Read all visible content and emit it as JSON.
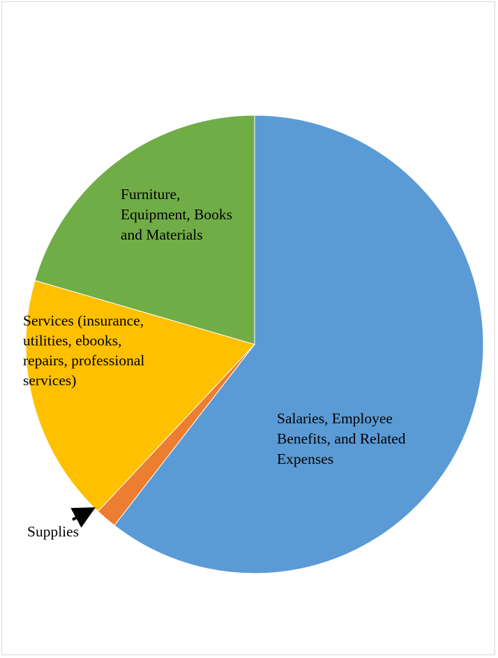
{
  "chart_data": {
    "type": "pie",
    "title": "",
    "categories": [
      "Salaries, Employee Benefits, and Related Expenses",
      "Supplies",
      "Services (insurance, utilities, ebooks, repairs, professional services)",
      "Furniture, Equipment, Books and Materials"
    ],
    "values": [
      60.5,
      1.5,
      17.5,
      20.5
    ],
    "colors": [
      "#5B9BD5",
      "#ED7D31",
      "#FFC000",
      "#70AD47"
    ],
    "start_angle_deg": 0,
    "direction": "clockwise",
    "legend": "none",
    "labels": [
      {
        "lines": [
          "Salaries, Employee",
          "Benefits, and Related",
          "Expenses"
        ]
      },
      {
        "lines": [
          "Supplies"
        ],
        "callout_arrow": true
      },
      {
        "lines": [
          "Services (insurance,",
          "utilities, ebooks,",
          "repairs, professional",
          "services)"
        ]
      },
      {
        "lines": [
          "Furniture,",
          "Equipment, Books",
          "and Materials"
        ]
      }
    ]
  }
}
